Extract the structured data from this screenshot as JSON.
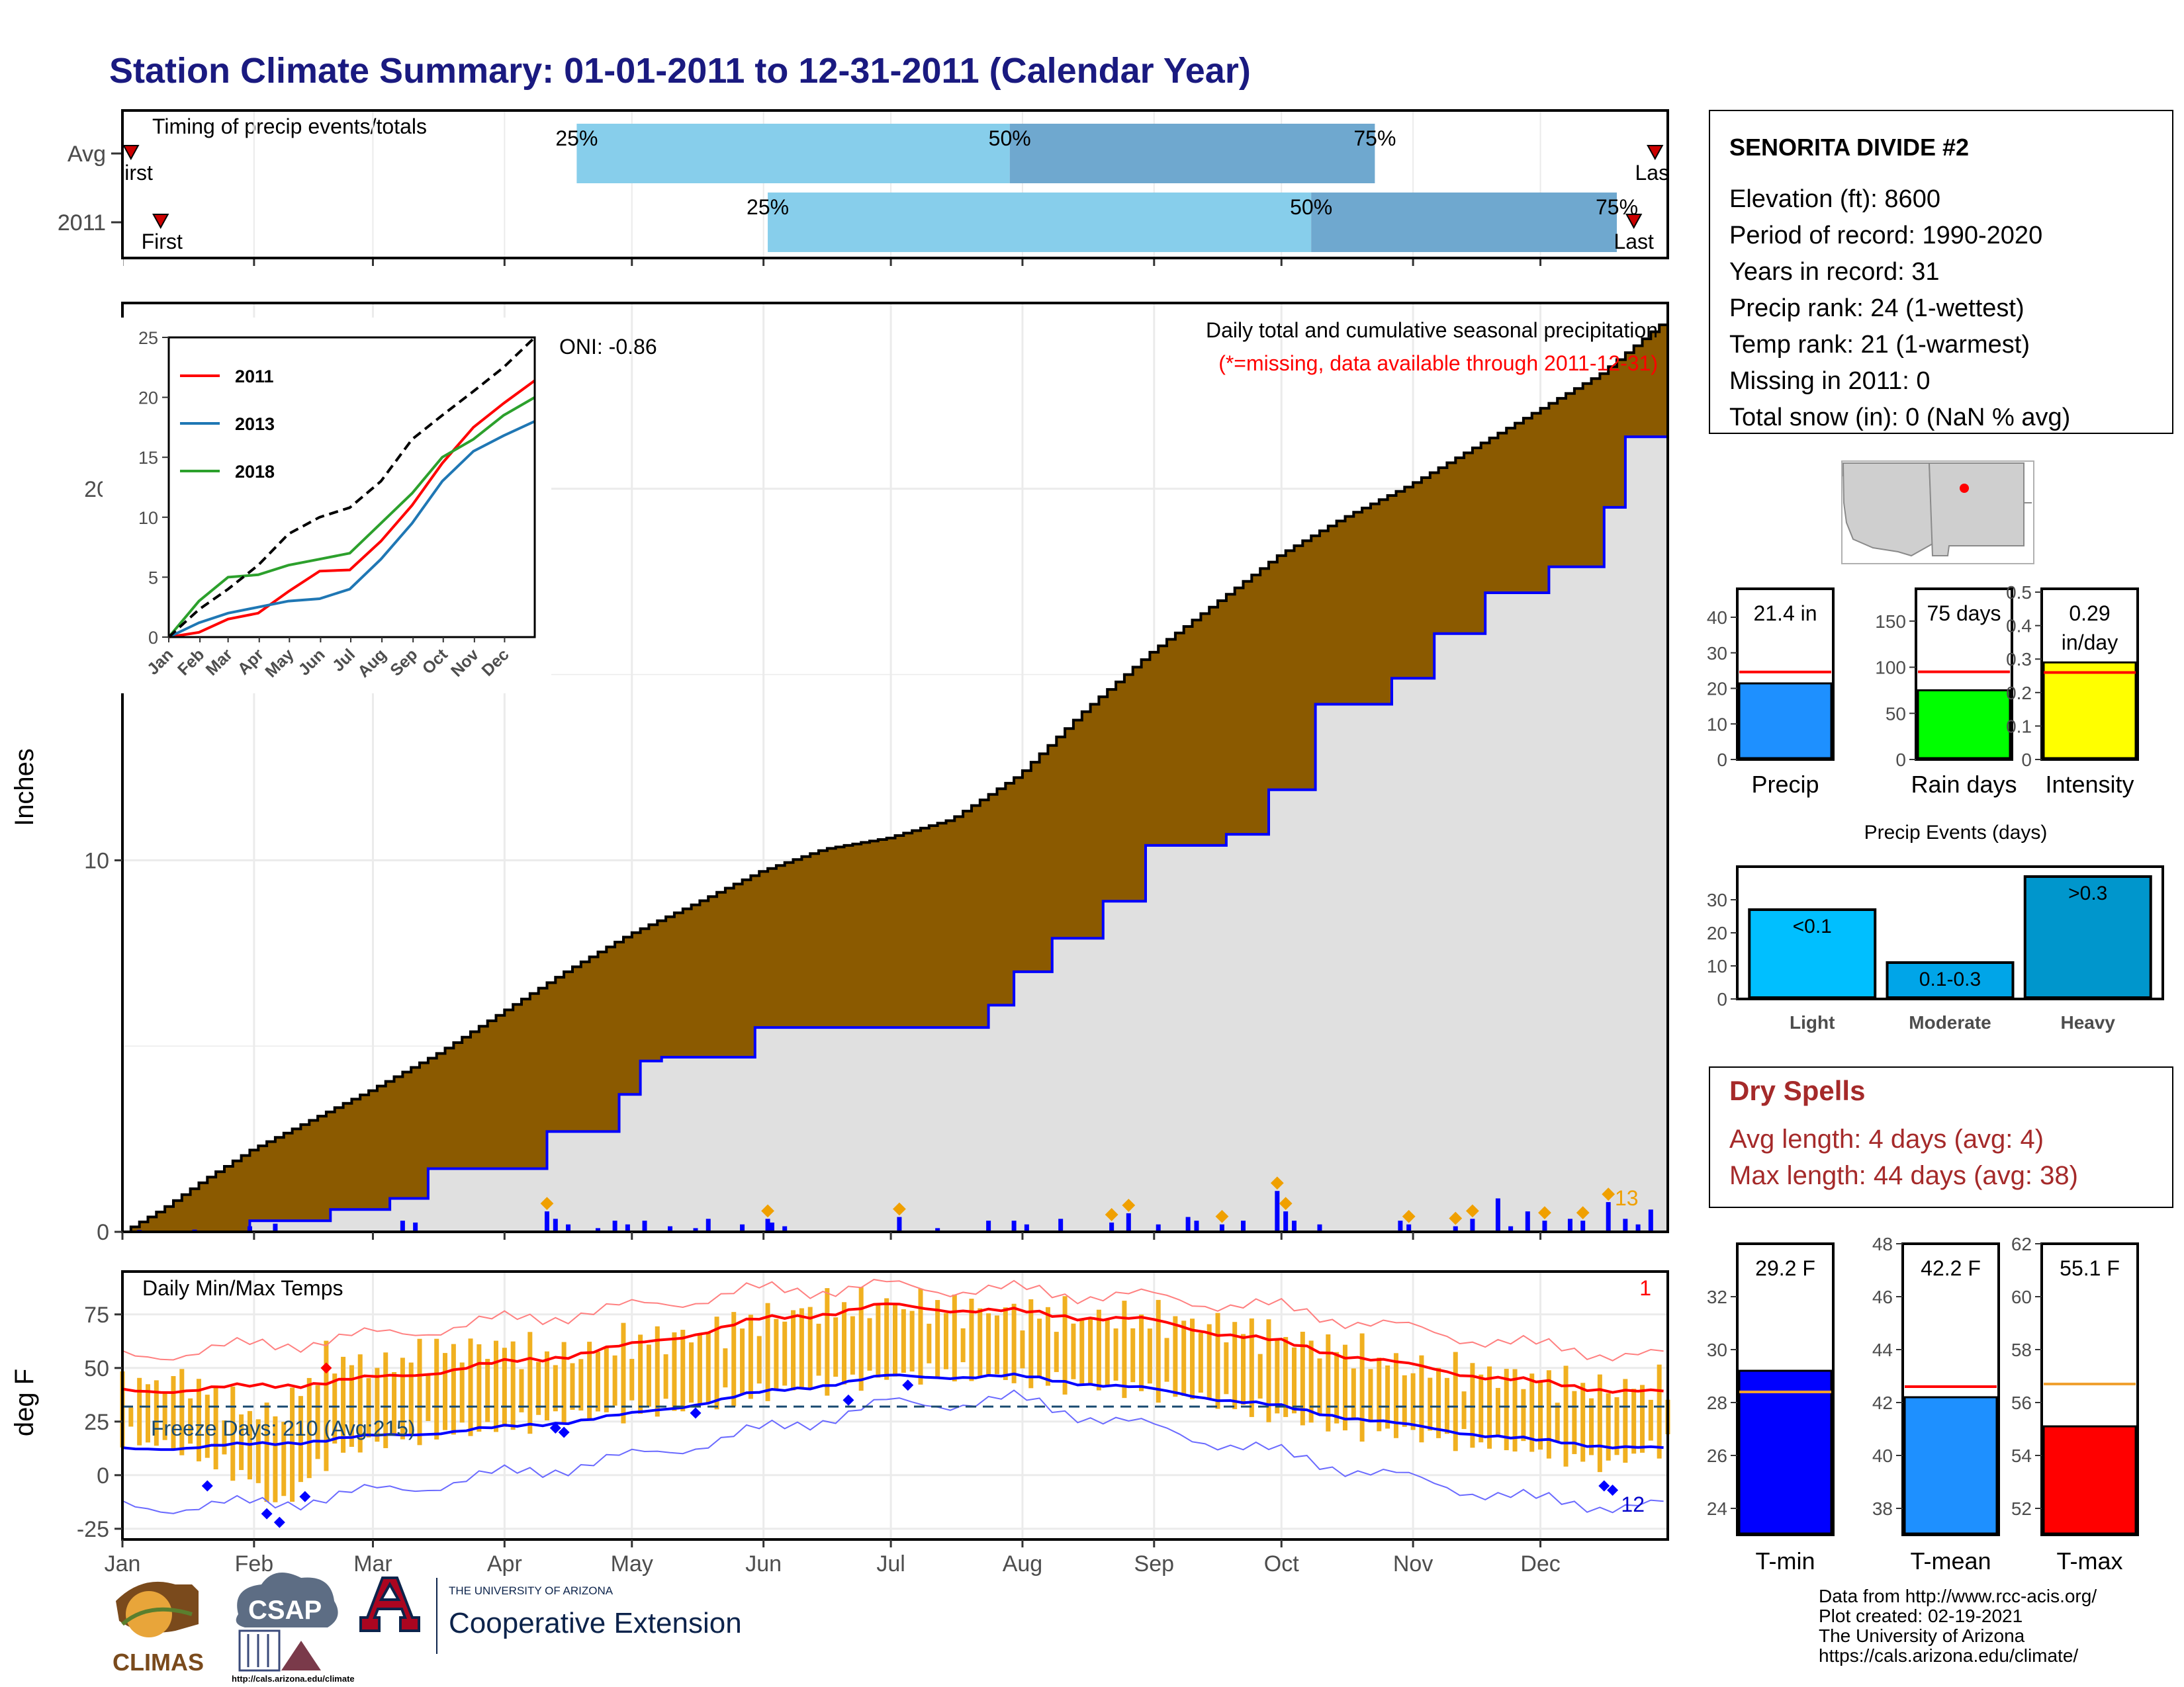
{
  "title": "Station Climate Summary: 01-01-2011 to 12-31-2011 (Calendar Year)",
  "station": {
    "name": "SENORITA DIVIDE #2",
    "lines": [
      "Elevation (ft): 8600",
      "Period of record: 1990-2020",
      "Years in record: 31",
      "Precip rank: 24 (1-wettest)",
      "Temp rank: 21 (1-warmest)",
      "Missing in 2011: 0",
      "Total snow (in): 0 (NaN % avg)"
    ]
  },
  "months": [
    "Jan",
    "Feb",
    "Mar",
    "Apr",
    "May",
    "Jun",
    "Jul",
    "Aug",
    "Sep",
    "Oct",
    "Nov",
    "Dec"
  ],
  "colors": {
    "title": "#1a1a80",
    "brown": "#8b5a00",
    "lightgray": "#e0e0e0",
    "blue": "#0000ff",
    "orange": "#f0b020",
    "lightblue": "#87ceeb",
    "steelblue": "#6fa8cf",
    "red": "#ff0000",
    "green": "#2ca02c",
    "darkred": "#a52a2a"
  },
  "chart_data": [
    {
      "id": "timing",
      "type": "bar",
      "title": "Timing of precip events/totals",
      "rows": [
        {
          "label": "Avg",
          "first_label": "First",
          "last_label": "Last",
          "first_doy": 3,
          "last_doy": 362,
          "p25_doy": 108,
          "p50_doy": 210,
          "p75_doy": 296
        },
        {
          "label": "2011",
          "first_label": "First",
          "last_label": "Last",
          "first_doy": 10,
          "last_doy": 357,
          "p25_doy": 153,
          "p50_doy": 281,
          "p75_doy": 353
        }
      ],
      "pct_labels": [
        "25%",
        "50%",
        "75%"
      ]
    },
    {
      "id": "cumulative-precip",
      "type": "area",
      "ylabel": "Inches",
      "ylim": [
        0,
        25
      ],
      "yticks": [
        0,
        10,
        20
      ],
      "annotation_title": "Daily total and cumulative seasonal precipitation",
      "annotation_missing": "(*=missing, data available through 2011-12-31)",
      "oni_label": "ONI: -0.86",
      "count_label": "13",
      "avg_cumulative": {
        "x": [
          1,
          10,
          20,
          31,
          45,
          59,
          75,
          90,
          105,
          120,
          135,
          151,
          166,
          181,
          196,
          212,
          227,
          243,
          258,
          273,
          288,
          304,
          319,
          334,
          349,
          365
        ],
        "y": [
          0.0,
          0.6,
          1.4,
          2.2,
          3.0,
          3.8,
          4.8,
          5.9,
          7.0,
          8.0,
          8.8,
          9.7,
          10.3,
          10.6,
          11.1,
          12.3,
          14.0,
          15.6,
          16.9,
          18.2,
          19.2,
          20.1,
          21.1,
          22.1,
          23.1,
          24.6
        ]
      },
      "obs_cumulative": {
        "x": [
          1,
          30,
          31,
          50,
          64,
          73,
          90,
          101,
          118,
          123,
          128,
          140,
          150,
          153,
          183,
          205,
          211,
          220,
          232,
          242,
          261,
          271,
          282,
          300,
          310,
          322,
          337,
          350,
          355,
          365
        ],
        "y": [
          0.0,
          0.0,
          0.3,
          0.6,
          0.9,
          1.7,
          1.7,
          2.7,
          3.7,
          4.6,
          4.7,
          4.7,
          5.5,
          5.5,
          5.5,
          6.1,
          7.0,
          7.9,
          8.9,
          10.4,
          10.7,
          11.9,
          14.2,
          14.9,
          16.1,
          17.2,
          17.9,
          19.5,
          21.4,
          21.4
        ]
      },
      "daily_bars": {
        "x": [
          5,
          8,
          18,
          31,
          37,
          67,
          70,
          101,
          103,
          106,
          113,
          117,
          120,
          124,
          130,
          136,
          139,
          147,
          153,
          154,
          157,
          184,
          193,
          205,
          211,
          214,
          222,
          234,
          238,
          245,
          252,
          254,
          260,
          265,
          273,
          275,
          277,
          283,
          302,
          304,
          315,
          319,
          325,
          328,
          332,
          336,
          342,
          345,
          351,
          355,
          358,
          361
        ],
        "y": [
          0.05,
          0.03,
          0.06,
          0.15,
          0.22,
          0.3,
          0.25,
          0.55,
          0.35,
          0.2,
          0.1,
          0.3,
          0.2,
          0.3,
          0.15,
          0.1,
          0.35,
          0.2,
          0.35,
          0.25,
          0.15,
          0.4,
          0.1,
          0.3,
          0.3,
          0.2,
          0.35,
          0.25,
          0.5,
          0.2,
          0.4,
          0.3,
          0.2,
          0.3,
          1.1,
          0.55,
          0.3,
          0.2,
          0.3,
          0.2,
          0.15,
          0.35,
          0.9,
          0.15,
          0.55,
          0.3,
          0.35,
          0.3,
          0.8,
          0.35,
          0.2,
          0.6
        ]
      },
      "top_event_markers_x": [
        101,
        153,
        184,
        234,
        238,
        260,
        273,
        275,
        304,
        315,
        319,
        336,
        345,
        351
      ]
    },
    {
      "id": "inset-cumulative",
      "type": "line",
      "ylim": [
        0,
        25
      ],
      "yticks": [
        0,
        5,
        10,
        15,
        20,
        25
      ],
      "series": [
        {
          "name": "2011",
          "color": "#ff0000",
          "x": [
            1,
            31,
            60,
            90,
            120,
            151,
            181,
            212,
            243,
            273,
            304,
            334,
            365
          ],
          "y": [
            0.0,
            0.4,
            1.5,
            2.0,
            3.8,
            5.5,
            5.6,
            8.0,
            11.0,
            14.5,
            17.5,
            19.5,
            21.4
          ]
        },
        {
          "name": "2013",
          "color": "#1f77b4",
          "x": [
            1,
            31,
            60,
            90,
            120,
            151,
            181,
            212,
            243,
            273,
            304,
            334,
            365
          ],
          "y": [
            0.0,
            1.2,
            2.0,
            2.5,
            3.0,
            3.2,
            4.0,
            6.5,
            9.5,
            13.0,
            15.5,
            16.8,
            18.0
          ]
        },
        {
          "name": "2018",
          "color": "#2ca02c",
          "x": [
            1,
            31,
            60,
            90,
            120,
            151,
            181,
            212,
            243,
            273,
            304,
            334,
            365
          ],
          "y": [
            0.0,
            3.0,
            5.0,
            5.2,
            6.0,
            6.5,
            7.0,
            9.5,
            12.0,
            15.0,
            16.5,
            18.5,
            20.0
          ]
        },
        {
          "name": "",
          "color": "#000000",
          "dashed": true,
          "x": [
            1,
            31,
            60,
            90,
            120,
            151,
            181,
            212,
            243,
            273,
            304,
            334,
            365
          ],
          "y": [
            0.0,
            2.3,
            4.0,
            6.0,
            8.6,
            10.0,
            10.8,
            13.0,
            16.5,
            18.5,
            20.5,
            22.5,
            25.0
          ]
        }
      ]
    },
    {
      "id": "daily-temps",
      "type": "line",
      "title": "Daily Min/Max Temps",
      "ylabel": "deg F",
      "ylim": [
        -30,
        95
      ],
      "yticks": [
        -25,
        0,
        25,
        50,
        75
      ],
      "freeze_label": "Freeze Days: 210 (Avg:215)",
      "freeze_line": 32,
      "count_top_label": "1",
      "count_bottom_label": "12",
      "avg_max": {
        "x": [
          1,
          30,
          60,
          90,
          120,
          150,
          181,
          212,
          243,
          273,
          304,
          334,
          365
        ],
        "y": [
          39,
          41,
          45,
          52,
          60,
          72,
          79,
          76,
          72,
          62,
          51,
          43,
          38
        ]
      },
      "avg_min": {
        "x": [
          1,
          30,
          60,
          90,
          120,
          150,
          181,
          212,
          243,
          273,
          304,
          334,
          365
        ],
        "y": [
          12,
          14,
          18,
          22,
          28,
          38,
          46,
          46,
          40,
          32,
          23,
          16,
          12
        ]
      },
      "record_max": {
        "x": [
          1,
          30,
          60,
          90,
          120,
          150,
          181,
          212,
          243,
          273,
          304,
          334,
          365
        ],
        "y": [
          55,
          60,
          65,
          72,
          78,
          86,
          88,
          86,
          83,
          78,
          68,
          60,
          55
        ]
      },
      "record_min": {
        "x": [
          1,
          30,
          60,
          90,
          120,
          150,
          181,
          212,
          243,
          273,
          304,
          334,
          365
        ],
        "y": [
          -15,
          -14,
          -8,
          0,
          8,
          20,
          33,
          35,
          22,
          10,
          -2,
          -12,
          -15
        ]
      },
      "obs_max": {
        "x": [
          1,
          15,
          30,
          38,
          50,
          60,
          75,
          90,
          105,
          120,
          135,
          150,
          165,
          181,
          195,
          212,
          228,
          243,
          258,
          273,
          290,
          304,
          320,
          334,
          350,
          365
        ],
        "y": [
          40,
          45,
          30,
          28,
          55,
          50,
          58,
          60,
          55,
          62,
          65,
          72,
          78,
          80,
          78,
          76,
          74,
          73,
          70,
          65,
          58,
          50,
          48,
          45,
          40,
          42
        ]
      },
      "obs_min": {
        "x": [
          1,
          15,
          30,
          38,
          50,
          60,
          75,
          90,
          105,
          120,
          135,
          150,
          165,
          181,
          195,
          212,
          228,
          243,
          258,
          273,
          290,
          304,
          320,
          334,
          350,
          365
        ],
        "y": [
          18,
          12,
          0,
          -15,
          10,
          15,
          20,
          22,
          28,
          30,
          32,
          38,
          42,
          46,
          48,
          45,
          42,
          40,
          35,
          28,
          22,
          20,
          15,
          12,
          5,
          15
        ]
      }
    },
    {
      "id": "precip-summary",
      "type": "bar",
      "panels": [
        {
          "label": "Precip",
          "value": 21.4,
          "value_label": "21.4 in",
          "avg": 24.6,
          "ylim": [
            0,
            48
          ],
          "yticks": [
            0,
            10,
            20,
            30,
            40
          ],
          "color": "#1e90ff"
        },
        {
          "label": "Rain days",
          "value": 75,
          "value_label": "75 days",
          "avg": 95,
          "ylim": [
            0,
            185
          ],
          "yticks": [
            0,
            50,
            100,
            150
          ],
          "color": "#00ff00"
        },
        {
          "label": "Intensity",
          "value": 0.29,
          "value_label": "0.29 in/day",
          "avg": 0.26,
          "ylim": [
            0,
            0.51
          ],
          "yticks": [
            0.0,
            0.1,
            0.2,
            0.3,
            0.4,
            0.5
          ],
          "color": "#ffff00"
        }
      ]
    },
    {
      "id": "precip-events",
      "type": "bar",
      "title": "Precip Events (days)",
      "categories": [
        "Light",
        "Moderate",
        "Heavy"
      ],
      "values": [
        27,
        11,
        37
      ],
      "value_labels": [
        "<0.1",
        "0.1-0.3",
        ">0.3"
      ],
      "ylim": [
        0,
        40
      ],
      "yticks": [
        0,
        10,
        20,
        30
      ],
      "colors": [
        "#00bfff",
        "#00a5e8",
        "#0096cc"
      ]
    },
    {
      "id": "temp-summary",
      "type": "bar",
      "panels": [
        {
          "label": "T-min",
          "value": 29.2,
          "value_label": "29.2 F",
          "avg": 28.4,
          "ylim": [
            23,
            34
          ],
          "yticks": [
            24,
            26,
            28,
            30,
            32
          ],
          "color": "#0000ff"
        },
        {
          "label": "T-mean",
          "value": 42.2,
          "value_label": "42.2 F",
          "avg": 42.6,
          "ylim": [
            37,
            48
          ],
          "yticks": [
            38,
            40,
            42,
            44,
            46,
            48
          ],
          "color": "#1e90ff"
        },
        {
          "label": "T-max",
          "value": 55.1,
          "value_label": "55.1 F",
          "avg": 56.7,
          "ylim": [
            51,
            62
          ],
          "yticks": [
            52,
            54,
            56,
            58,
            60,
            62
          ],
          "color": "#ff0000"
        }
      ]
    }
  ],
  "dry_spells": {
    "title": "Dry Spells",
    "avg_line": "Avg length: 4 days (avg: 4)",
    "max_line": "Max length: 44 days (avg: 38)"
  },
  "footer": {
    "lines": [
      "Data from http://www.rcc-acis.org/",
      "Plot created: 02-19-2021",
      "The University of Arizona",
      "https://cals.arizona.edu/climate/"
    ]
  },
  "logos": {
    "climas": "CLIMAS",
    "csap": "CSAP",
    "csap_url": "http://cals.arizona.edu/climate",
    "ua_small": "THE UNIVERSITY OF ARIZONA",
    "coop": "Cooperative Extension"
  }
}
